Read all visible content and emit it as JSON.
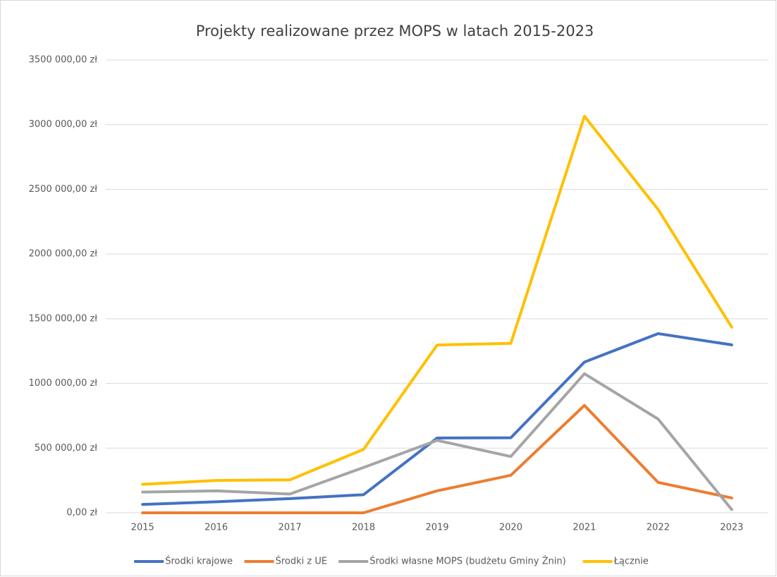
{
  "chart_data": {
    "type": "line",
    "title": "Projekty realizowane przez MOPS w latach 2015-2023",
    "categories": [
      "2015",
      "2016",
      "2017",
      "2018",
      "2019",
      "2020",
      "2021",
      "2022",
      "2023"
    ],
    "series": [
      {
        "name": "Środki krajowe",
        "color": "#4472c4",
        "values": [
          65000,
          85000,
          110000,
          140000,
          578000,
          580000,
          1165000,
          1385000,
          1298000
        ]
      },
      {
        "name": "Środki z UE",
        "color": "#ed7d31",
        "values": [
          0,
          0,
          0,
          0,
          170000,
          290000,
          830000,
          235000,
          115000
        ]
      },
      {
        "name": "Środki własne MOPS (budżetu Gminy Żnin)",
        "color": "#a5a5a5",
        "values": [
          160000,
          170000,
          145000,
          350000,
          560000,
          435000,
          1075000,
          725000,
          25000
        ]
      },
      {
        "name": "Łącznie",
        "color": "#ffc000",
        "values": [
          220000,
          250000,
          255000,
          490000,
          1297000,
          1310000,
          3065000,
          2345000,
          1435000
        ]
      }
    ],
    "ylim": [
      0,
      3500000
    ],
    "yticks": [
      {
        "value": 0,
        "label": "0,00 zł"
      },
      {
        "value": 500000,
        "label": "500 000,00 zł"
      },
      {
        "value": 1000000,
        "label": "1000 000,00 zł"
      },
      {
        "value": 1500000,
        "label": "1500 000,00 zł"
      },
      {
        "value": 2000000,
        "label": "2000 000,00 zł"
      },
      {
        "value": 2500000,
        "label": "2500 000,00 zł"
      },
      {
        "value": 3000000,
        "label": "3000 000,00 zł"
      },
      {
        "value": 3500000,
        "label": "3500 000,00 zł"
      }
    ],
    "grid": true,
    "legend": "bottom"
  }
}
